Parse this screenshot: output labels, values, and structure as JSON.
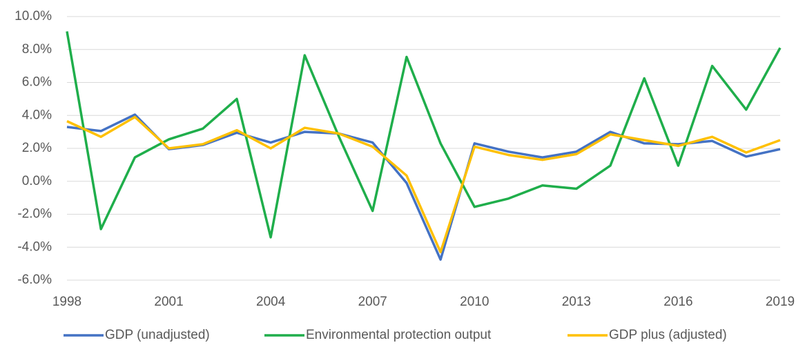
{
  "chart_data": {
    "type": "line",
    "x": [
      1998,
      1999,
      2000,
      2001,
      2002,
      2003,
      2004,
      2005,
      2006,
      2007,
      2008,
      2009,
      2010,
      2011,
      2012,
      2013,
      2014,
      2015,
      2016,
      2017,
      2018,
      2019
    ],
    "series": [
      {
        "name": "GDP (unadjusted)",
        "color": "#4472c4",
        "values": [
          3.3,
          3.05,
          4.05,
          1.95,
          2.2,
          2.95,
          2.35,
          3.0,
          2.9,
          2.35,
          -0.1,
          -4.75,
          2.3,
          1.8,
          1.45,
          1.8,
          3.0,
          2.3,
          2.25,
          2.45,
          1.5,
          1.95
        ]
      },
      {
        "name": "Environmental protection output",
        "color": "#1fae4b",
        "values": [
          9.1,
          -2.9,
          1.45,
          2.55,
          3.2,
          5.0,
          -3.4,
          7.65,
          2.75,
          -1.8,
          7.55,
          2.3,
          -1.55,
          -1.05,
          -0.25,
          -0.45,
          0.95,
          6.25,
          0.95,
          7.0,
          4.35,
          8.1
        ]
      },
      {
        "name": "GDP plus (adjusted)",
        "color": "#ffc000",
        "values": [
          3.65,
          2.7,
          3.9,
          2.0,
          2.25,
          3.1,
          2.0,
          3.25,
          2.9,
          2.1,
          0.35,
          -4.3,
          2.1,
          1.6,
          1.3,
          1.65,
          2.85,
          2.5,
          2.15,
          2.7,
          1.75,
          2.5
        ]
      }
    ],
    "xlim": [
      1998,
      2019
    ],
    "xticks": [
      1998,
      2001,
      2004,
      2007,
      2010,
      2013,
      2016,
      2019
    ],
    "ylim": [
      -6,
      10
    ],
    "yticks": [
      {
        "value": -6,
        "label": "-6.0%"
      },
      {
        "value": -4,
        "label": "-4.0%"
      },
      {
        "value": -2,
        "label": "-2.0%"
      },
      {
        "value": 0,
        "label": "0.0%"
      },
      {
        "value": 2,
        "label": "2.0%"
      },
      {
        "value": 4,
        "label": "4.0%"
      },
      {
        "value": 6,
        "label": "6.0%"
      },
      {
        "value": 8,
        "label": "8.0%"
      },
      {
        "value": 10,
        "label": "10.0%"
      }
    ],
    "grid": true,
    "legend": "bottom"
  }
}
